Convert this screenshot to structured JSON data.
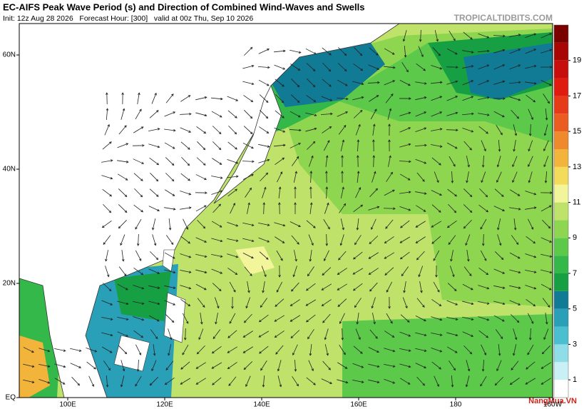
{
  "header": {
    "title": "EC-AIFS Peak Wave Period (s) and Direction of Combined Wind-Waves and Swells",
    "subtitle": "Init: 12z Aug 28 2026   Forecast Hour: [300]   valid at 00z Thu, Sep 10 2026",
    "brand": "TROPICALTIDBITS.COM"
  },
  "map": {
    "lon_range": [
      90,
      200
    ],
    "lat_range": [
      0,
      65.5
    ],
    "lon_ticks": [
      {
        "value": 100,
        "label": "100E"
      },
      {
        "value": 120,
        "label": "120E"
      },
      {
        "value": 140,
        "label": "140E"
      },
      {
        "value": 160,
        "label": "160E"
      },
      {
        "value": 180,
        "label": "180"
      },
      {
        "value": 200,
        "label": "160W"
      }
    ],
    "lat_ticks": [
      {
        "value": 60,
        "label": "60N"
      },
      {
        "value": 40,
        "label": "40N"
      },
      {
        "value": 20,
        "label": "20N"
      },
      {
        "value": 0,
        "label": "EQ"
      }
    ]
  },
  "colorbar": {
    "levels": [
      0,
      1,
      2,
      3,
      4,
      5,
      6,
      7,
      8,
      9,
      10,
      11,
      12,
      13,
      14,
      15,
      16,
      17,
      18,
      19,
      20,
      21
    ],
    "colors": [
      "#ffffff",
      "#c9f0f5",
      "#8fdde6",
      "#4bbfd0",
      "#2a9fb8",
      "#117a94",
      "#16a043",
      "#34b84a",
      "#5cc94a",
      "#8ed650",
      "#bfe36a",
      "#f3f59a",
      "#f4dc5a",
      "#f2b43b",
      "#ee8a2b",
      "#ea5c20",
      "#e63a18",
      "#e01b10",
      "#c80d0d",
      "#a80505",
      "#7a0000"
    ],
    "ticks": [
      1,
      3,
      5,
      7,
      9,
      11,
      13,
      15,
      17,
      19
    ]
  },
  "watermark": "NangMua.VN"
}
